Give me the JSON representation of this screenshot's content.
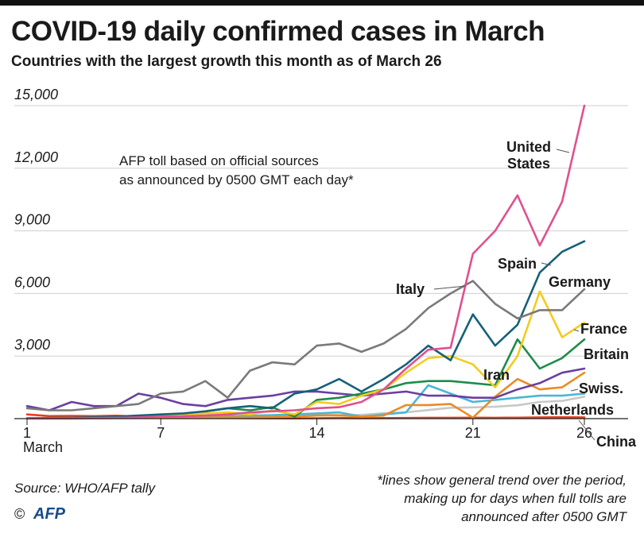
{
  "header": {
    "title": "COVID-19 daily confirmed cases in March",
    "subtitle": "Countries with the largest growth this month as of March 26"
  },
  "annotation": {
    "line1": "AFP toll based on official sources",
    "line2": "as announced by 0500 GMT each day*"
  },
  "footer": {
    "source": "Source: WHO/AFP tally",
    "copyright_symbol": "©",
    "logo_text": "AFP",
    "footnote": [
      "*lines show general trend over the period,",
      "making up for days when full tolls are",
      "announced after 0500 GMT"
    ]
  },
  "chart_data": {
    "type": "line",
    "title": "COVID-19 daily confirmed cases in March",
    "subtitle": "Countries with the largest growth this month as of March 26",
    "x": [
      1,
      2,
      3,
      4,
      5,
      6,
      7,
      8,
      9,
      10,
      11,
      12,
      13,
      14,
      15,
      16,
      17,
      18,
      19,
      20,
      21,
      22,
      23,
      24,
      25,
      26
    ],
    "xlim": [
      1,
      26
    ],
    "x_ticks": [
      1,
      7,
      14,
      21,
      26
    ],
    "x_tick_labels": [
      "1",
      "7",
      "14",
      "21",
      "26"
    ],
    "x_sub_label": "March",
    "ylim": [
      0,
      15000
    ],
    "y_ticks": [
      3000,
      6000,
      9000,
      12000,
      15000
    ],
    "y_tick_labels": [
      "3,000",
      "6,000",
      "9,000",
      "12,000",
      "15,000"
    ],
    "grid": true,
    "legend": "direct labels at line ends",
    "series": [
      {
        "name": "China",
        "color": "#e8401c",
        "values": [
          200,
          120,
          130,
          120,
          140,
          100,
          60,
          40,
          40,
          30,
          20,
          15,
          10,
          20,
          30,
          20,
          25,
          30,
          40,
          40,
          45,
          40,
          45,
          60,
          70,
          60
        ]
      },
      {
        "name": "Netherlands",
        "color": "#c8c8c8",
        "values": [
          0,
          0,
          0,
          10,
          20,
          30,
          40,
          50,
          60,
          80,
          100,
          150,
          160,
          190,
          170,
          180,
          260,
          300,
          410,
          520,
          540,
          570,
          640,
          800,
          850,
          1050
        ]
      },
      {
        "name": "Swiss.",
        "color": "#4cb6d6",
        "values": [
          10,
          15,
          20,
          30,
          40,
          50,
          60,
          80,
          100,
          120,
          140,
          170,
          200,
          250,
          300,
          100,
          200,
          300,
          1600,
          1200,
          800,
          900,
          1000,
          1100,
          1100,
          1200
        ]
      },
      {
        "name": "Britain",
        "color": "#e98b27",
        "values": [
          10,
          10,
          15,
          20,
          30,
          40,
          50,
          60,
          50,
          70,
          50,
          80,
          100,
          150,
          160,
          100,
          150,
          650,
          650,
          700,
          50,
          1050,
          1900,
          1400,
          1500,
          2200
        ]
      },
      {
        "name": "Iran",
        "color": "#6a3fa0",
        "values": [
          600,
          400,
          800,
          600,
          600,
          1200,
          1000,
          700,
          600,
          900,
          1000,
          1100,
          1300,
          1300,
          1200,
          1100,
          1200,
          1300,
          1100,
          1100,
          1000,
          1000,
          1400,
          1700,
          2200,
          2400
        ]
      },
      {
        "name": "France",
        "color": "#1e8c4a",
        "values": [
          20,
          30,
          40,
          50,
          60,
          100,
          200,
          150,
          350,
          500,
          400,
          550,
          100,
          900,
          1000,
          1200,
          1400,
          1700,
          1800,
          1800,
          1700,
          1600,
          3800,
          2400,
          2900,
          3800
        ]
      },
      {
        "name": "Germany",
        "color": "#f2cc1e",
        "values": [
          10,
          20,
          40,
          50,
          70,
          100,
          150,
          200,
          250,
          300,
          200,
          400,
          200,
          800,
          700,
          1100,
          1400,
          2200,
          2900,
          3000,
          2600,
          1500,
          3000,
          6100,
          3900,
          4600
        ]
      },
      {
        "name": "Spain",
        "color": "#17607a",
        "values": [
          20,
          30,
          40,
          70,
          100,
          150,
          200,
          250,
          350,
          500,
          600,
          500,
          1200,
          1400,
          1900,
          1300,
          1900,
          2600,
          3500,
          2800,
          5000,
          3500,
          4500,
          7000,
          8000,
          8500
        ]
      },
      {
        "name": "Italy",
        "color": "#7a7a7a",
        "values": [
          500,
          400,
          400,
          500,
          600,
          700,
          1200,
          1300,
          1800,
          1000,
          2300,
          2700,
          2600,
          3500,
          3600,
          3200,
          3600,
          4300,
          5300,
          6000,
          6600,
          5500,
          4800,
          5200,
          5200,
          6200
        ]
      },
      {
        "name": "United States",
        "color": "#e0508f",
        "values": [
          10,
          15,
          20,
          30,
          40,
          60,
          100,
          110,
          150,
          200,
          300,
          350,
          400,
          500,
          550,
          800,
          1400,
          2400,
          3300,
          3400,
          7900,
          9000,
          10700,
          8300,
          10400,
          15000
        ]
      }
    ]
  }
}
